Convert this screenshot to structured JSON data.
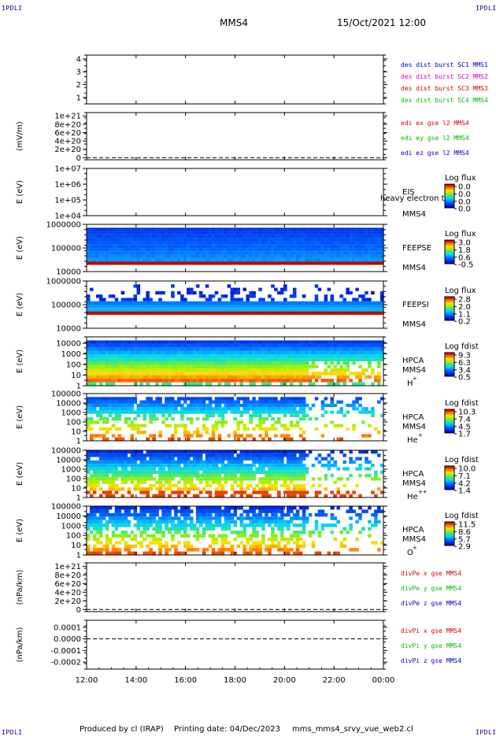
{
  "header": {
    "spacecraft": "MMS4",
    "date": "15/Oct/2021 12:00",
    "corner_tag": "IPDLI"
  },
  "footer": {
    "produced_by": "Produced by cl (IRAP)",
    "printing_date": "Printing date: 04/Dec/2023",
    "filename": "mms_mms4_srvy_vue_web2.cl"
  },
  "chart_data": {
    "type": "multi-panel time series / spectrogram stack",
    "time_axis": {
      "range": [
        "12:00",
        "00:00"
      ],
      "range_hours": [
        12,
        24
      ],
      "ticks": [
        "12:00",
        "14:00",
        "16:00",
        "18:00",
        "20:00",
        "22:00",
        "00:00"
      ],
      "tick_hours": [
        12,
        14,
        16,
        18,
        20,
        22,
        24
      ]
    },
    "panels": [
      {
        "id": "dist",
        "type": "line",
        "ylabel": "",
        "yticks": [
          "4",
          "3",
          "2",
          "1"
        ],
        "ytick_values": [
          4,
          3,
          2,
          1
        ],
        "ylim": [
          0.5,
          4.3
        ],
        "legend": [
          {
            "label": "des dist burst SC1 MMS1",
            "color": "#0000cc"
          },
          {
            "label": "des dist burst SC2 MMS2",
            "color": "#cc00cc"
          },
          {
            "label": "des dist burst SC3 MMS3",
            "color": "#dd0000"
          },
          {
            "label": "des dist burst SC4 MMS4",
            "color": "#00bb00"
          }
        ]
      },
      {
        "id": "edi",
        "type": "line",
        "ylabel": "(mV/m)",
        "yticks": [
          "1e+21",
          "8e+20",
          "6e+20",
          "4e+20",
          "2e+20",
          "0"
        ],
        "ytick_values": [
          1e+21,
          8e+20,
          6e+20,
          4e+20,
          2e+20,
          0
        ],
        "ylim": [
          -5e+19,
          1.08e+21
        ],
        "zero_line": true,
        "legend": [
          {
            "label": "edi ex gse l2 MMS4",
            "color": "#dd0000"
          },
          {
            "label": "edi ey gse l2 MMS4",
            "color": "#00bb00"
          },
          {
            "label": "edi ez gse l2 MMS4",
            "color": "#0000cc"
          }
        ]
      },
      {
        "id": "eis",
        "type": "heatmap",
        "ylabel": "E (eV)",
        "yticks": [
          "1e+07",
          "1e+06",
          "1e+05",
          "1e+04"
        ],
        "ytick_values": [
          10000000.0,
          1000000.0,
          100000.0,
          10000.0
        ],
        "ylim": [
          10000.0,
          10000000.0
        ],
        "yscale": "log",
        "labels": [
          "EIS",
          "MMS4"
        ],
        "overlay_text": "heavy electron to",
        "colorbar": {
          "title": "Log flux",
          "ticks": [
            "0.0",
            "0.0",
            "0.0",
            "0.0"
          ]
        },
        "pattern": "empty"
      },
      {
        "id": "feepse",
        "type": "heatmap",
        "ylabel": "E (eV)",
        "yticks": [
          "1000000",
          "100000",
          "10000"
        ],
        "ytick_values": [
          1000000,
          100000,
          10000
        ],
        "ylim": [
          10000,
          1000000
        ],
        "yscale": "log",
        "labels": [
          "FEEPSE",
          "MMS4"
        ],
        "colorbar": {
          "title": "Log flux",
          "ticks": [
            "3.0",
            "1.8",
            "0.6",
            "-0.5"
          ]
        },
        "pattern": "feepse"
      },
      {
        "id": "feepsi",
        "type": "heatmap",
        "ylabel": "E (eV)",
        "yticks": [
          "1000000",
          "100000",
          "10000"
        ],
        "ytick_values": [
          1000000,
          100000,
          10000
        ],
        "ylim": [
          10000,
          1000000
        ],
        "yscale": "log",
        "labels": [
          "FEEPSI",
          "MMS4"
        ],
        "colorbar": {
          "title": "Log flux",
          "ticks": [
            "2.8",
            "2.0",
            "1.1",
            "0.2"
          ]
        },
        "pattern": "feepsi"
      },
      {
        "id": "hpca_h",
        "type": "heatmap",
        "ylabel": "E (eV)",
        "yticks": [
          "10000",
          "1000",
          "100",
          "10",
          "1"
        ],
        "ytick_values": [
          10000,
          1000,
          100,
          10,
          1
        ],
        "ylim": [
          1,
          40000
        ],
        "yscale": "log",
        "labels": [
          "HPCA",
          "MMS4",
          "H",
          "+"
        ],
        "colorbar": {
          "title": "Log fdist",
          "ticks": [
            "9.3",
            "6.3",
            "3.4",
            "0.5"
          ]
        },
        "pattern": "hpca_h"
      },
      {
        "id": "hpca_he",
        "type": "heatmap",
        "ylabel": "E (eV)",
        "yticks": [
          "100000",
          "10000",
          "1000",
          "100",
          "10",
          "1"
        ],
        "ytick_values": [
          100000,
          10000,
          1000,
          100,
          10,
          1
        ],
        "ylim": [
          1,
          100000
        ],
        "yscale": "log",
        "labels": [
          "HPCA",
          "MMS4",
          "He",
          "+"
        ],
        "colorbar": {
          "title": "Log fdist",
          "ticks": [
            "10.3",
            "7.4",
            "4.5",
            "1.7"
          ]
        },
        "pattern": "hpca_he"
      },
      {
        "id": "hpca_he2",
        "type": "heatmap",
        "ylabel": "E (eV)",
        "yticks": [
          "100000",
          "10000",
          "1000",
          "100",
          "10",
          "1"
        ],
        "ytick_values": [
          100000,
          10000,
          1000,
          100,
          10,
          1
        ],
        "ylim": [
          1,
          100000
        ],
        "yscale": "log",
        "labels": [
          "HPCA",
          "MMS4",
          "He",
          "++"
        ],
        "colorbar": {
          "title": "Log fdist",
          "ticks": [
            "10.0",
            "7.1",
            "4.2",
            "1.4"
          ]
        },
        "pattern": "hpca_he2"
      },
      {
        "id": "hpca_o",
        "type": "heatmap",
        "ylabel": "E (eV)",
        "yticks": [
          "100000",
          "10000",
          "1000",
          "100",
          "10",
          "1"
        ],
        "ytick_values": [
          100000,
          10000,
          1000,
          100,
          10,
          1
        ],
        "ylim": [
          1,
          100000
        ],
        "yscale": "log",
        "labels": [
          "HPCA",
          "MMS4",
          "O",
          "+"
        ],
        "colorbar": {
          "title": "Log fdist",
          "ticks": [
            "11.5",
            "8.6",
            "5.7",
            "2.9"
          ]
        },
        "pattern": "hpca_o"
      },
      {
        "id": "divpe",
        "type": "line",
        "ylabel": "(nPa/km)",
        "yticks": [
          "1e+21",
          "8e+20",
          "6e+20",
          "4e+20",
          "2e+20",
          "0"
        ],
        "ytick_values": [
          1e+21,
          8e+20,
          6e+20,
          4e+20,
          2e+20,
          0
        ],
        "ylim": [
          -5e+19,
          1.08e+21
        ],
        "zero_line": true,
        "legend": [
          {
            "label": "divPe x gse MMS4",
            "color": "#dd0000"
          },
          {
            "label": "divPe y gse MMS4",
            "color": "#00bb00"
          },
          {
            "label": "divPe z gse MMS4",
            "color": "#0000cc"
          }
        ]
      },
      {
        "id": "divpi",
        "type": "line",
        "ylabel": "(nPa/km)",
        "yticks": [
          "0.0001",
          "0.0000",
          "-0.0001",
          "-0.0002"
        ],
        "ytick_values": [
          0.0001,
          0.0,
          -0.0001,
          -0.0002
        ],
        "ylim": [
          -0.00026,
          0.00016
        ],
        "zero_line": true,
        "legend": [
          {
            "label": "divPi x gse MMS4",
            "color": "#dd0000"
          },
          {
            "label": "divPi y gse MMS4",
            "color": "#00bb00"
          },
          {
            "label": "divPi z gse MMS4",
            "color": "#0000cc"
          }
        ]
      }
    ]
  }
}
